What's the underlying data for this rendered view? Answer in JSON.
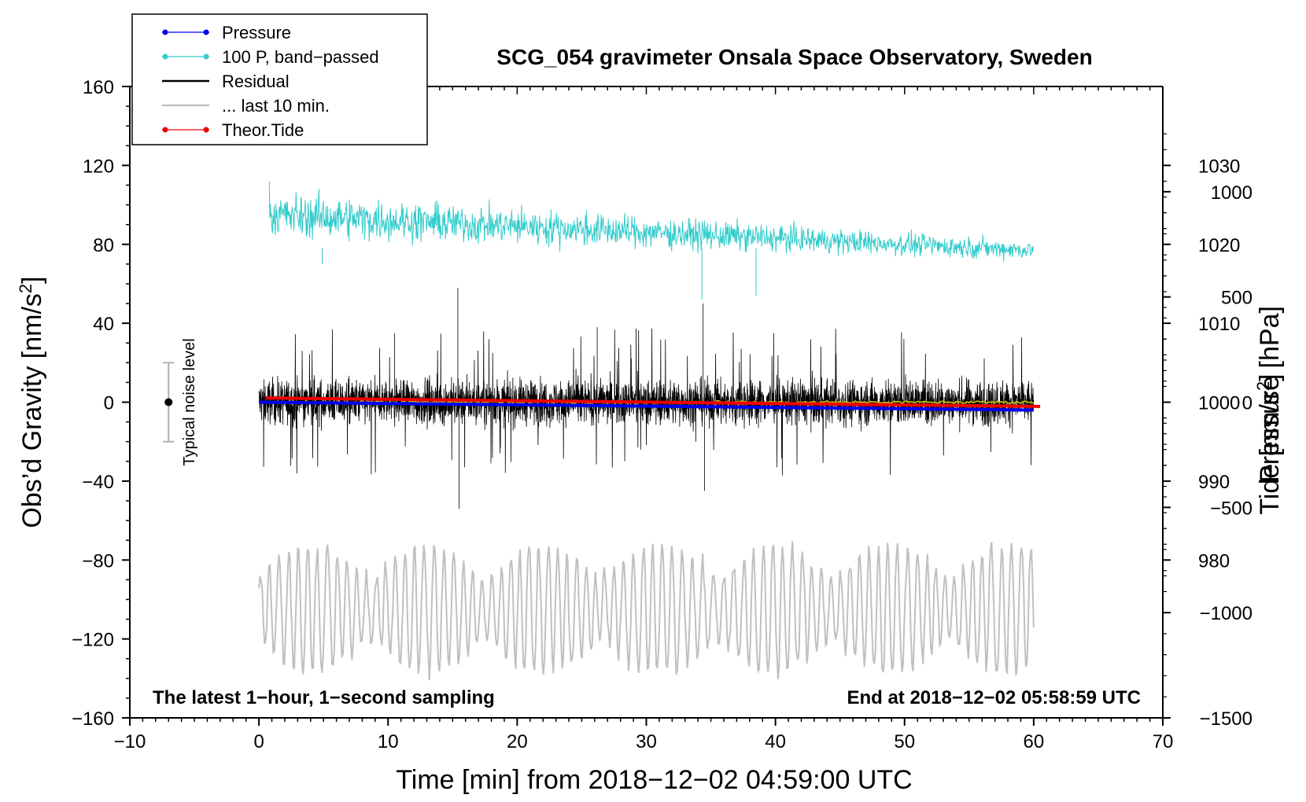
{
  "chart_data": {
    "type": "line",
    "title": "SCG_054 gravimeter Onsala Space Observatory, Sweden",
    "xlabel": "Time [min] from 2018−12−02 04:59:00 UTC",
    "ylabel_left": "Obs’d Gravity [nm/s",
    "ylabel_left_sup": "2",
    "ylabel_left_end": "]",
    "ylabel_right_pressure": "Pressure [hPa]",
    "ylabel_right_tide": "Tide [nm/s",
    "ylabel_right_tide_sup": "2",
    "ylabel_right_tide_end": "]",
    "xlim": [
      -10,
      70
    ],
    "ylim_left": [
      -160,
      160
    ],
    "xticks": [
      -10,
      0,
      10,
      20,
      30,
      40,
      50,
      60,
      70
    ],
    "xtick_labels": [
      "−10",
      "0",
      "10",
      "20",
      "30",
      "40",
      "50",
      "60",
      "70"
    ],
    "yticks_left": [
      160,
      120,
      80,
      40,
      0,
      -40,
      -80,
      -120,
      -160
    ],
    "ytick_left_labels": [
      "160",
      "120",
      "80",
      "40",
      "0",
      "−40",
      "−80",
      "−120",
      "−160"
    ],
    "pressure_axis": {
      "ticks": [
        1030,
        1020,
        1010,
        1000,
        990,
        980
      ],
      "tick_labels": [
        "1030",
        "1020",
        "1010",
        "1000",
        "990",
        "980"
      ],
      "range": [
        960,
        1040
      ]
    },
    "tide_axis": {
      "ticks": [
        1000,
        500,
        0,
        -500,
        -1000,
        -1500
      ],
      "tick_labels": [
        "1000",
        "500",
        "0",
        "−500",
        "−1000",
        "−1500"
      ],
      "range": [
        -1500,
        1500
      ]
    },
    "legend": [
      {
        "label": "Pressure",
        "color": "#0000ee",
        "marker": true
      },
      {
        "label": "100 P, band−passed",
        "color": "#33cccc",
        "marker": true
      },
      {
        "label": "Residual",
        "color": "#000000",
        "marker": false
      },
      {
        "label": "... last 10 min.",
        "color": "#c0c0c0",
        "marker": false
      },
      {
        "label": "Theor.Tide",
        "color": "#ee0000",
        "marker": true
      }
    ],
    "legend_position": "top-left",
    "series": [
      {
        "name": "Pressure",
        "color": "#0000ee",
        "axis": "pressure",
        "x_range": [
          0,
          60
        ],
        "start_value": 1000.0,
        "end_value": 999.0
      },
      {
        "name": "100 P, band−passed",
        "color": "#33cccc",
        "axis": "left",
        "x_range": [
          0.8,
          60
        ],
        "start_mean": 95,
        "end_mean": 77,
        "amplitude_start": 12,
        "amplitude_end": 5
      },
      {
        "name": "Residual",
        "color": "#000000",
        "axis": "left",
        "x_range": [
          0,
          60
        ],
        "mean": 0,
        "typical_amplitude": 20,
        "max": 58,
        "min": -54
      },
      {
        "name": "Residual smoothed",
        "color": "#cccc00",
        "axis": "left",
        "x_range": [
          0,
          60
        ],
        "mean": 0
      },
      {
        "name": "... last 10 min.",
        "color": "#c0c0c0",
        "axis": "left",
        "x_range": [
          0,
          60
        ],
        "mean": -105,
        "amplitude": 30,
        "max": -63,
        "min": -147
      },
      {
        "name": "Theor.Tide",
        "color": "#ee0000",
        "axis": "tide",
        "x_range": [
          0.5,
          60.5
        ],
        "start_value": 20,
        "end_value": -20
      }
    ],
    "noise_marker": {
      "label": "Typical noise level",
      "x": -7,
      "center": 0,
      "half_range": 20
    },
    "footer_left": "The latest 1−hour, 1−second sampling",
    "footer_right": "End at 2018−12−02 05:58:59 UTC"
  }
}
